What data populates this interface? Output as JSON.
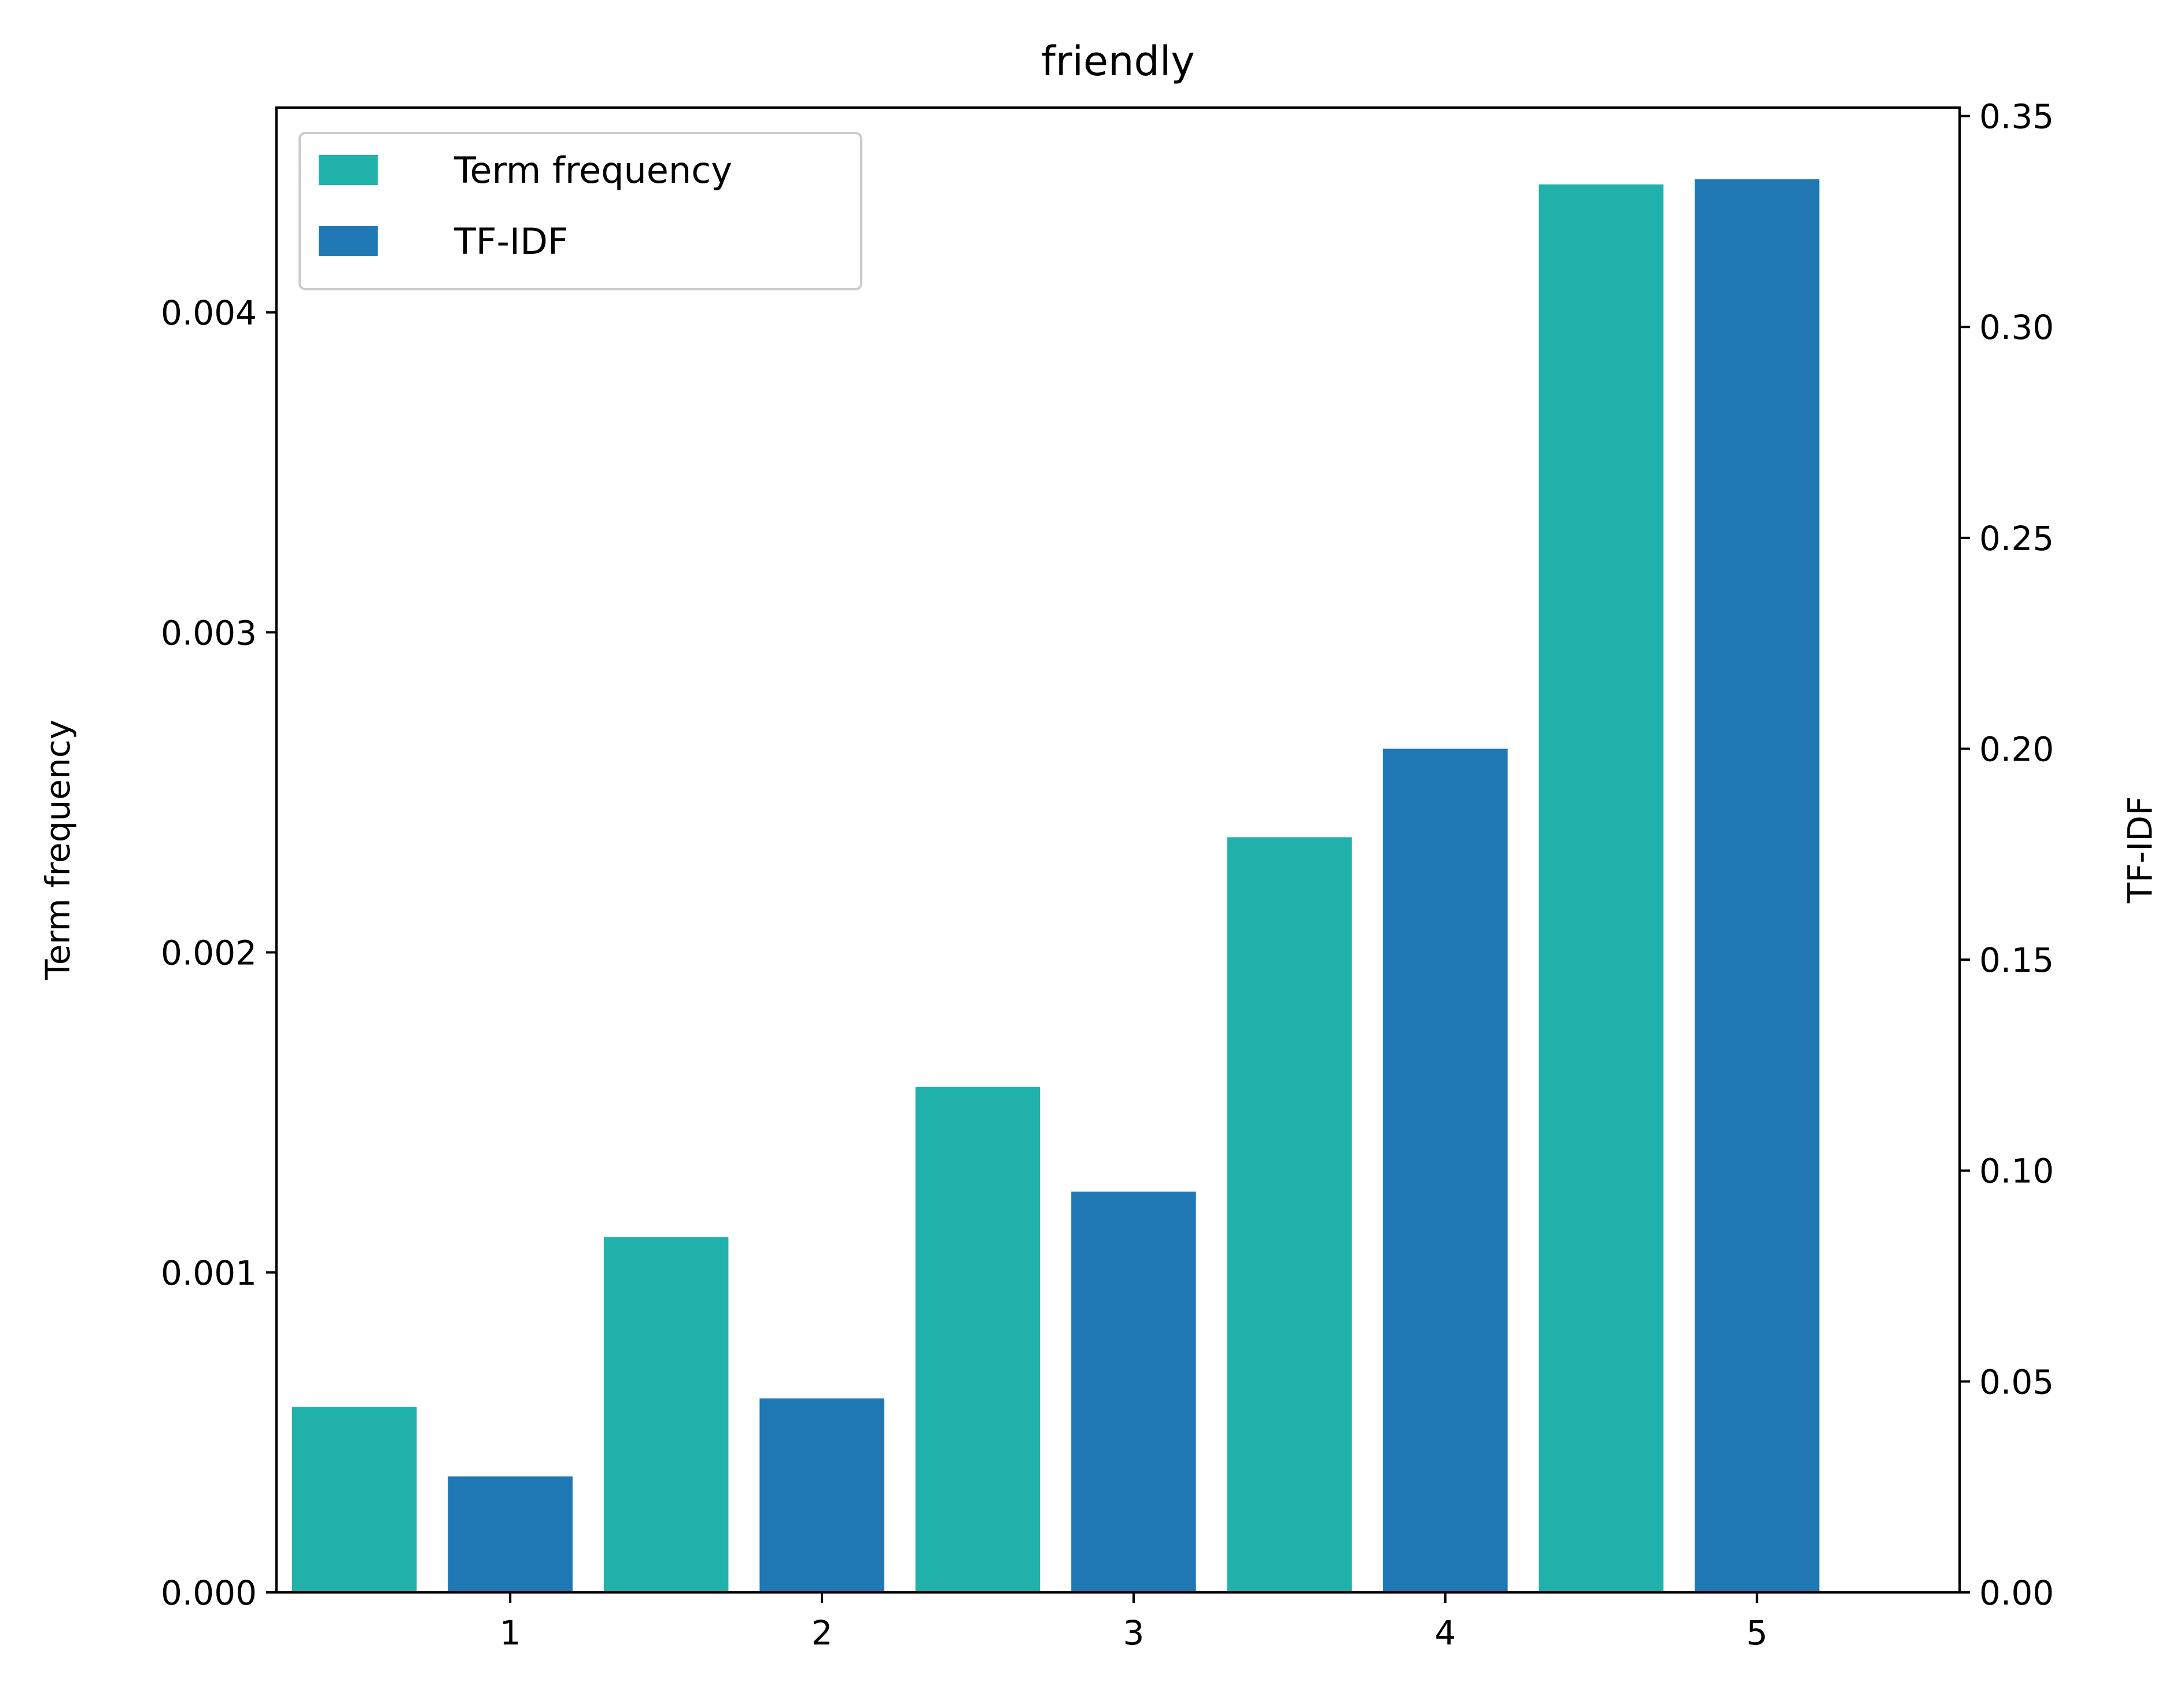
{
  "chart_data": {
    "type": "bar",
    "title": "friendly",
    "x": [
      1,
      2,
      3,
      4,
      5
    ],
    "xlim": [
      0.25,
      5.65
    ],
    "series": [
      {
        "name": "Term frequency",
        "axis": "left",
        "color": "#20B2AA",
        "values": [
          0.00058,
          0.00111,
          0.00158,
          0.00236,
          0.0044
        ]
      },
      {
        "name": "TF-IDF",
        "axis": "right",
        "color": "#1F77B4",
        "values": [
          0.0275,
          0.046,
          0.095,
          0.2,
          0.335
        ]
      }
    ],
    "ylabel_left": "Term frequency",
    "ylabel_right": "TF-IDF",
    "ylim_left": [
      0,
      0.00464
    ],
    "ylim_right": [
      0,
      0.352
    ],
    "yticks_left": [
      "0.000",
      "0.001",
      "0.002",
      "0.003",
      "0.004"
    ],
    "yticks_right": [
      "0.00",
      "0.05",
      "0.10",
      "0.15",
      "0.20",
      "0.25",
      "0.30",
      "0.35"
    ],
    "xticks": [
      "1",
      "2",
      "3",
      "4",
      "5"
    ],
    "legend": {
      "loc": "upper left"
    },
    "grid": false
  }
}
